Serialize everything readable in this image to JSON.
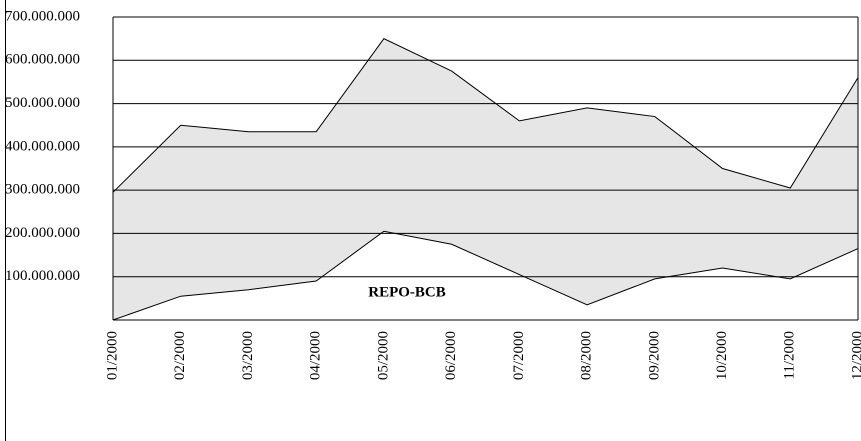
{
  "chart_data": {
    "type": "range_area",
    "categories": [
      "01/2000",
      "02/2000",
      "03/2000",
      "04/2000",
      "05/2000",
      "06/2000",
      "07/2000",
      "08/2000",
      "09/2000",
      "10/2000",
      "11/2000",
      "12/2000"
    ],
    "series": [
      {
        "values": [
          0,
          55000000,
          70000000,
          90000000,
          205000000,
          175000000,
          105000000,
          35000000,
          95000000,
          120000000,
          95000000,
          165000000
        ]
      },
      {
        "values": [
          295000000,
          450000000,
          435000000,
          435000000,
          650000000,
          575000000,
          460000000,
          490000000,
          470000000,
          350000000,
          305000000,
          560000000
        ]
      }
    ],
    "color": "#e6e6e6",
    "annotation": "REPO-BCB",
    "ylim": [
      0,
      700000000
    ],
    "yticks": [
      {
        "value": 100000000,
        "label": "100.000.000"
      },
      {
        "value": 200000000,
        "label": "200.000.000"
      },
      {
        "value": 300000000,
        "label": "300.000.000"
      },
      {
        "value": 400000000,
        "label": "400.000.000"
      },
      {
        "value": 500000000,
        "label": "500.000.000"
      },
      {
        "value": 600000000,
        "label": "600.000.000"
      },
      {
        "value": 700000000,
        "label": "700.000.000"
      }
    ],
    "grid": true
  }
}
